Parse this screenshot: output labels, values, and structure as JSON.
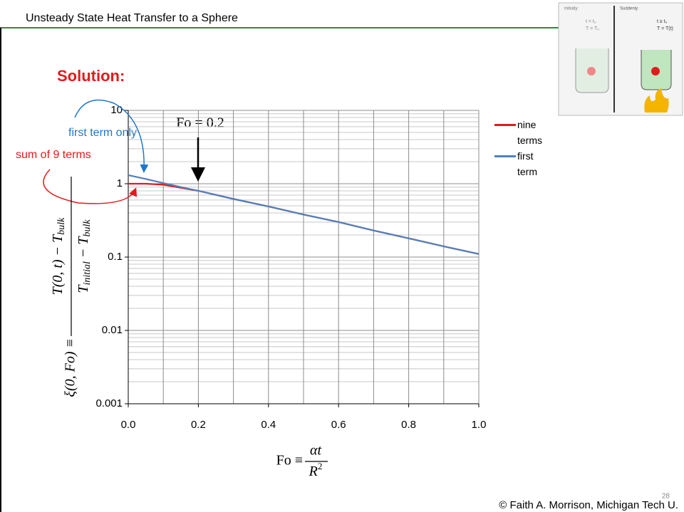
{
  "slide_title": "Unsteady State Heat Transfer to a Sphere",
  "heading": "Solution:",
  "footer": "© Faith A. Morrison, Michigan Tech U.",
  "page_number": "28",
  "inset": {
    "left_title": "Initially:",
    "left_cond1": "t < t₀",
    "left_cond2": "T = T₀",
    "right_title": "Suddenly:",
    "right_cond1": "t ≥ t₀",
    "right_cond2": "T = T(t)"
  },
  "chart_data": {
    "type": "line",
    "annotations": {
      "first_term": "first term only",
      "sum_terms": "sum of 9 terms",
      "fo_marker": "Fo = 0.2"
    },
    "y_label": {
      "left": "ξ(0, Fo) ≡ ",
      "num": "T(0, t) − T",
      "num_sub": "bulk",
      "den": "T",
      "den_sub": "initial",
      "den_tail": " − T",
      "den_sub2": "bulk"
    },
    "x_label": {
      "left": "Fo ≡ ",
      "num": "αt",
      "den": "R",
      "den_sup": "2"
    },
    "x": [
      0,
      0.05,
      0.1,
      0.15,
      0.2,
      0.3,
      0.4,
      0.5,
      0.6,
      0.7,
      0.8,
      0.9,
      1.0
    ],
    "series": [
      {
        "name": "nine terms",
        "color": "#e31a1c",
        "values": [
          1.0,
          1.0,
          0.97,
          0.88,
          0.8,
          0.62,
          0.49,
          0.38,
          0.3,
          0.23,
          0.18,
          0.14,
          0.11
        ]
      },
      {
        "name": "first term",
        "color": "#4f81bd",
        "values": [
          1.31,
          1.16,
          1.02,
          0.9,
          0.8,
          0.62,
          0.49,
          0.38,
          0.3,
          0.23,
          0.18,
          0.14,
          0.11
        ]
      }
    ],
    "xlim": [
      0,
      1.0
    ],
    "xticks": [
      {
        "value": 0,
        "label": "0.0"
      },
      {
        "value": 0.2,
        "label": "0.2"
      },
      {
        "value": 0.4,
        "label": "0.4"
      },
      {
        "value": 0.6,
        "label": "0.6"
      },
      {
        "value": 0.8,
        "label": "0.8"
      },
      {
        "value": 1.0,
        "label": "1.0"
      }
    ],
    "xgrid_step": 0.1,
    "ylim": [
      0.001,
      10
    ],
    "yticks": [
      0.001,
      0.01,
      0.1,
      1,
      10
    ],
    "y_log": true,
    "minor_grid": true,
    "grid": true,
    "legend": "right"
  }
}
